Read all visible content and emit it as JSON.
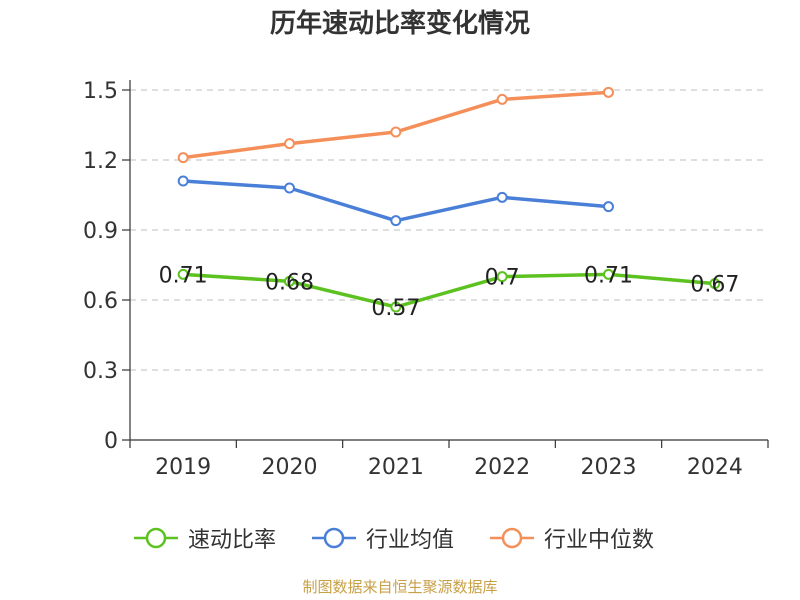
{
  "title": "历年速动比率变化情况",
  "source": "制图数据来自恒生聚源数据库",
  "chart_data": {
    "type": "line",
    "categories": [
      "2019",
      "2020",
      "2021",
      "2022",
      "2023",
      "2024"
    ],
    "ylim": [
      0,
      1.5
    ],
    "yticks": [
      "0",
      "0.3",
      "0.6",
      "0.9",
      "1.2",
      "1.5"
    ],
    "grid": true,
    "legend_position": "bottom",
    "series": [
      {
        "name": "速动比率",
        "color": "#5cc21f",
        "values": [
          0.71,
          0.68,
          0.57,
          0.7,
          0.71,
          0.67
        ],
        "labels": [
          "0.71",
          "0.68",
          "0.57",
          "0.7",
          "0.71",
          "0.67"
        ],
        "show_labels": true
      },
      {
        "name": "行业均值",
        "color": "#4a7fd8",
        "values": [
          1.11,
          1.08,
          0.94,
          1.04,
          1.0,
          null
        ],
        "show_labels": false
      },
      {
        "name": "行业中位数",
        "color": "#f58f5a",
        "values": [
          1.21,
          1.27,
          1.32,
          1.46,
          1.49,
          null
        ],
        "show_labels": false
      }
    ]
  }
}
